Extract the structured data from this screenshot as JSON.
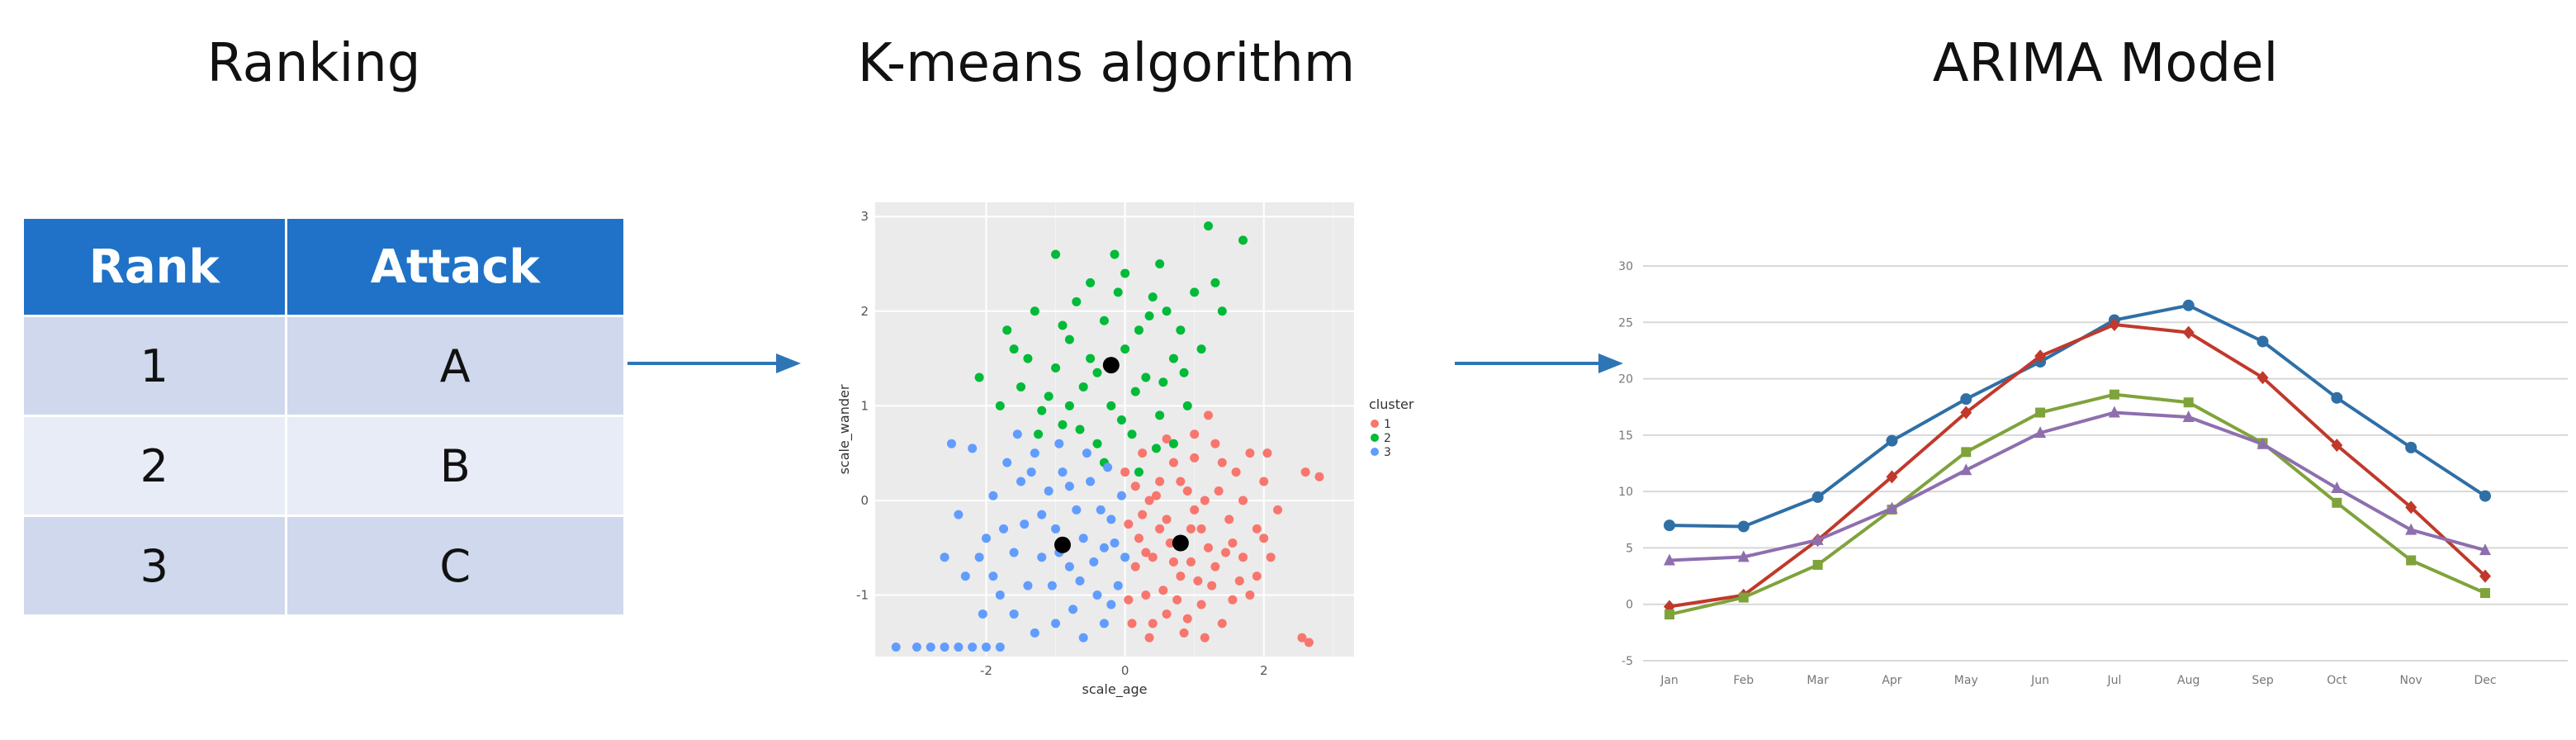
{
  "sections": {
    "ranking_title": "Ranking",
    "kmeans_title": "K-means algorithm",
    "arima_title": "ARIMA Model"
  },
  "ranking_table": {
    "headers": [
      "Rank",
      "Attack"
    ],
    "rows": [
      [
        "1",
        "A"
      ],
      [
        "2",
        "B"
      ],
      [
        "3",
        "C"
      ]
    ]
  },
  "colors": {
    "table_header": "#1f72c7",
    "arrow": "#2e75b6",
    "cluster_1": "#f8766d",
    "cluster_2": "#00ba38",
    "cluster_3": "#619cff",
    "arima_blue": "#2f6fa6",
    "arima_red": "#c0392b",
    "arima_green": "#7fa33b",
    "arima_purple": "#8e6fae"
  },
  "chart_data": [
    {
      "type": "scatter",
      "title": "",
      "xlabel": "scale_age",
      "ylabel": "scale_wander",
      "xlim": [
        -3.6,
        3.3
      ],
      "ylim": [
        -1.65,
        3.15
      ],
      "xticks": [
        -2,
        0,
        2
      ],
      "yticks": [
        -1,
        0,
        1,
        2,
        3
      ],
      "legend": {
        "title": "cluster",
        "entries": [
          "1",
          "2",
          "3"
        ],
        "placement": "right"
      },
      "centroids": [
        {
          "cluster": "2",
          "x": -0.2,
          "y": 1.43
        },
        {
          "cluster": "3",
          "x": -0.9,
          "y": -0.47
        },
        {
          "cluster": "1",
          "x": 0.8,
          "y": -0.45
        }
      ],
      "series": [
        {
          "name": "1",
          "points": [
            [
              0.05,
              -0.25
            ],
            [
              0.2,
              -0.4
            ],
            [
              0.4,
              -0.6
            ],
            [
              0.6,
              -0.2
            ],
            [
              0.8,
              -0.8
            ],
            [
              1.0,
              -0.1
            ],
            [
              1.2,
              -0.5
            ],
            [
              0.3,
              -1.0
            ],
            [
              0.5,
              0.2
            ],
            [
              0.7,
              0.4
            ],
            [
              0.9,
              0.1
            ],
            [
              1.1,
              -0.3
            ],
            [
              1.3,
              -0.7
            ],
            [
              1.5,
              -0.2
            ],
            [
              1.7,
              -0.6
            ],
            [
              1.9,
              -0.3
            ],
            [
              0.1,
              -1.3
            ],
            [
              0.35,
              -1.45
            ],
            [
              0.6,
              -1.2
            ],
            [
              0.85,
              -1.4
            ],
            [
              1.1,
              -1.1
            ],
            [
              1.4,
              -1.3
            ],
            [
              1.8,
              -1.0
            ],
            [
              2.0,
              -0.4
            ],
            [
              2.2,
              -0.1
            ],
            [
              1.6,
              0.3
            ],
            [
              1.3,
              0.6
            ],
            [
              1.0,
              0.7
            ],
            [
              1.8,
              0.5
            ],
            [
              2.0,
              0.2
            ],
            [
              2.6,
              0.3
            ],
            [
              2.8,
              0.25
            ],
            [
              2.65,
              -1.5
            ],
            [
              2.55,
              -1.45
            ],
            [
              0.0,
              0.3
            ],
            [
              0.25,
              0.5
            ],
            [
              0.45,
              0.05
            ],
            [
              0.65,
              -0.45
            ],
            [
              0.95,
              -0.65
            ],
            [
              1.25,
              -0.9
            ],
            [
              0.15,
              -0.7
            ],
            [
              0.55,
              -0.95
            ],
            [
              0.75,
              -1.05
            ],
            [
              1.05,
              -0.85
            ],
            [
              1.35,
              0.1
            ],
            [
              1.55,
              -0.45
            ],
            [
              0.35,
              0.0
            ],
            [
              0.8,
              0.2
            ],
            [
              1.2,
              0.9
            ],
            [
              1.55,
              -1.05
            ],
            [
              2.1,
              -0.6
            ],
            [
              0.25,
              -0.15
            ],
            [
              0.5,
              -0.3
            ],
            [
              0.7,
              -0.65
            ],
            [
              0.95,
              -0.3
            ],
            [
              1.15,
              0.0
            ],
            [
              1.45,
              -0.55
            ],
            [
              1.65,
              -0.85
            ],
            [
              0.05,
              -1.05
            ],
            [
              0.4,
              -1.3
            ],
            [
              0.9,
              -1.25
            ],
            [
              1.7,
              0.0
            ],
            [
              1.9,
              -0.8
            ],
            [
              2.05,
              0.5
            ],
            [
              0.6,
              0.65
            ],
            [
              1.0,
              0.45
            ],
            [
              1.4,
              0.4
            ],
            [
              0.15,
              0.15
            ],
            [
              0.3,
              -0.55
            ],
            [
              1.15,
              -1.45
            ]
          ]
        },
        {
          "name": "2",
          "points": [
            [
              -1.0,
              2.6
            ],
            [
              -0.5,
              2.3
            ],
            [
              0.0,
              2.4
            ],
            [
              0.5,
              2.5
            ],
            [
              1.2,
              2.9
            ],
            [
              1.7,
              2.75
            ],
            [
              -1.7,
              1.8
            ],
            [
              -1.3,
              2.0
            ],
            [
              -0.8,
              1.7
            ],
            [
              -0.3,
              1.9
            ],
            [
              0.2,
              1.8
            ],
            [
              0.6,
              2.0
            ],
            [
              1.0,
              2.2
            ],
            [
              1.3,
              2.3
            ],
            [
              -1.4,
              1.5
            ],
            [
              -1.0,
              1.4
            ],
            [
              -0.6,
              1.2
            ],
            [
              -0.2,
              1.0
            ],
            [
              0.3,
              1.3
            ],
            [
              0.7,
              1.5
            ],
            [
              1.1,
              1.6
            ],
            [
              -1.2,
              0.95
            ],
            [
              -0.9,
              0.8
            ],
            [
              -0.4,
              0.6
            ],
            [
              0.1,
              0.7
            ],
            [
              0.5,
              0.9
            ],
            [
              0.9,
              1.0
            ],
            [
              -0.7,
              2.1
            ],
            [
              -0.1,
              2.2
            ],
            [
              0.4,
              2.15
            ],
            [
              0.8,
              1.8
            ],
            [
              -1.5,
              1.2
            ],
            [
              -1.1,
              1.1
            ],
            [
              -0.5,
              1.5
            ],
            [
              0.0,
              1.6
            ],
            [
              -2.1,
              1.3
            ],
            [
              -0.3,
              0.4
            ],
            [
              0.2,
              0.3
            ],
            [
              0.7,
              0.6
            ],
            [
              -0.8,
              1.0
            ],
            [
              -0.4,
              1.35
            ],
            [
              0.15,
              1.15
            ],
            [
              0.55,
              1.25
            ],
            [
              -1.6,
              1.6
            ],
            [
              -0.9,
              1.85
            ],
            [
              -0.15,
              2.6
            ],
            [
              0.35,
              1.95
            ],
            [
              1.4,
              2.0
            ],
            [
              -1.25,
              0.7
            ],
            [
              -0.65,
              0.75
            ],
            [
              -0.05,
              0.85
            ],
            [
              0.45,
              0.55
            ],
            [
              0.85,
              1.35
            ],
            [
              -1.8,
              1.0
            ]
          ]
        },
        {
          "name": "3",
          "points": [
            [
              -3.3,
              -1.55
            ],
            [
              -3.0,
              -1.55
            ],
            [
              -2.8,
              -1.55
            ],
            [
              -2.6,
              -1.55
            ],
            [
              -2.4,
              -1.55
            ],
            [
              -2.2,
              -1.55
            ],
            [
              -2.0,
              -1.55
            ],
            [
              -1.8,
              -1.55
            ],
            [
              -1.6,
              -1.2
            ],
            [
              -1.4,
              -0.9
            ],
            [
              -1.2,
              -0.6
            ],
            [
              -1.0,
              -0.3
            ],
            [
              -0.8,
              -0.7
            ],
            [
              -0.6,
              -0.4
            ],
            [
              -0.4,
              -1.0
            ],
            [
              -0.2,
              -0.2
            ],
            [
              -1.7,
              0.4
            ],
            [
              -1.5,
              0.2
            ],
            [
              -1.3,
              0.5
            ],
            [
              -1.1,
              0.1
            ],
            [
              -0.9,
              0.3
            ],
            [
              -0.7,
              -0.1
            ],
            [
              -0.5,
              0.2
            ],
            [
              -0.3,
              -0.5
            ],
            [
              -2.3,
              -0.8
            ],
            [
              -2.0,
              -0.4
            ],
            [
              -1.8,
              -1.0
            ],
            [
              -2.5,
              0.6
            ],
            [
              -2.2,
              0.55
            ],
            [
              -2.4,
              -0.15
            ],
            [
              -2.1,
              -0.6
            ],
            [
              -1.9,
              0.05
            ],
            [
              -0.1,
              -0.9
            ],
            [
              -0.3,
              -1.3
            ],
            [
              -0.6,
              -1.45
            ],
            [
              -1.0,
              -1.3
            ],
            [
              -1.3,
              -1.4
            ],
            [
              -1.6,
              -0.55
            ],
            [
              -1.2,
              -0.15
            ],
            [
              -0.8,
              0.15
            ],
            [
              -0.45,
              -0.65
            ],
            [
              -0.15,
              -0.45
            ],
            [
              -0.25,
              0.35
            ],
            [
              -0.55,
              0.5
            ],
            [
              -0.95,
              0.6
            ],
            [
              -1.45,
              -0.25
            ],
            [
              -1.75,
              -0.3
            ],
            [
              -2.05,
              -1.2
            ],
            [
              -1.55,
              0.7
            ],
            [
              -0.75,
              -1.15
            ],
            [
              -0.35,
              -0.1
            ],
            [
              0.0,
              -0.6
            ],
            [
              -0.05,
              0.05
            ],
            [
              -1.05,
              -0.9
            ],
            [
              -1.35,
              0.3
            ],
            [
              -0.65,
              -0.85
            ],
            [
              -2.6,
              -0.6
            ],
            [
              -1.9,
              -0.8
            ],
            [
              -0.95,
              -0.55
            ],
            [
              -0.2,
              -1.1
            ]
          ]
        }
      ]
    },
    {
      "type": "line",
      "title": "",
      "categories": [
        "Jan",
        "Feb",
        "Mar",
        "Apr",
        "May",
        "Jun",
        "Jul",
        "Aug",
        "Sep",
        "Oct",
        "Nov",
        "Dec"
      ],
      "ylim": [
        -5,
        30
      ],
      "yticks": [
        -5,
        0,
        5,
        10,
        15,
        20,
        25,
        30
      ],
      "grid": true,
      "series": [
        {
          "values": [
            7.0,
            6.9,
            9.5,
            14.5,
            18.2,
            21.5,
            25.2,
            26.5,
            23.3,
            18.3,
            13.9,
            9.6
          ]
        },
        {
          "values": [
            -0.2,
            0.8,
            5.7,
            11.3,
            17.0,
            22.0,
            24.8,
            24.1,
            20.1,
            14.1,
            8.6,
            2.5
          ]
        },
        {
          "values": [
            -0.9,
            0.6,
            3.5,
            8.4,
            13.5,
            17.0,
            18.6,
            17.9,
            14.3,
            9.0,
            3.9,
            1.0
          ]
        },
        {
          "values": [
            3.9,
            4.2,
            5.7,
            8.5,
            11.9,
            15.2,
            17.0,
            16.6,
            14.2,
            10.3,
            6.6,
            4.8
          ]
        }
      ]
    }
  ]
}
